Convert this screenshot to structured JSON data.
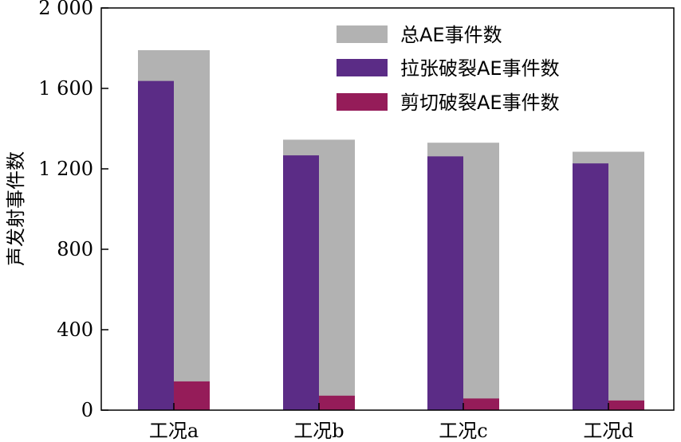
{
  "chart_data": {
    "type": "bar",
    "title": "",
    "xlabel": "",
    "ylabel": "声发射事件数",
    "categories": [
      "工况a",
      "工况b",
      "工况c",
      "工况d"
    ],
    "ylim": [
      0,
      2000
    ],
    "yticks": [
      0,
      400,
      800,
      1200,
      1600,
      2000
    ],
    "ytick_labels": [
      "0",
      "400",
      "800",
      "1 200",
      "1 600",
      "2 000"
    ],
    "grid": false,
    "legend_position": "top-right",
    "series": [
      {
        "name": "总AE事件数",
        "values": [
          1790,
          1345,
          1330,
          1285
        ],
        "color": "#b2b2b2"
      },
      {
        "name": "拉张破裂AE事件数",
        "values": [
          1637,
          1267,
          1262,
          1227
        ],
        "color": "#5b2c86"
      },
      {
        "name": "剪切破裂AE事件数",
        "values": [
          143,
          72,
          58,
          48
        ],
        "color": "#951c59"
      }
    ]
  }
}
